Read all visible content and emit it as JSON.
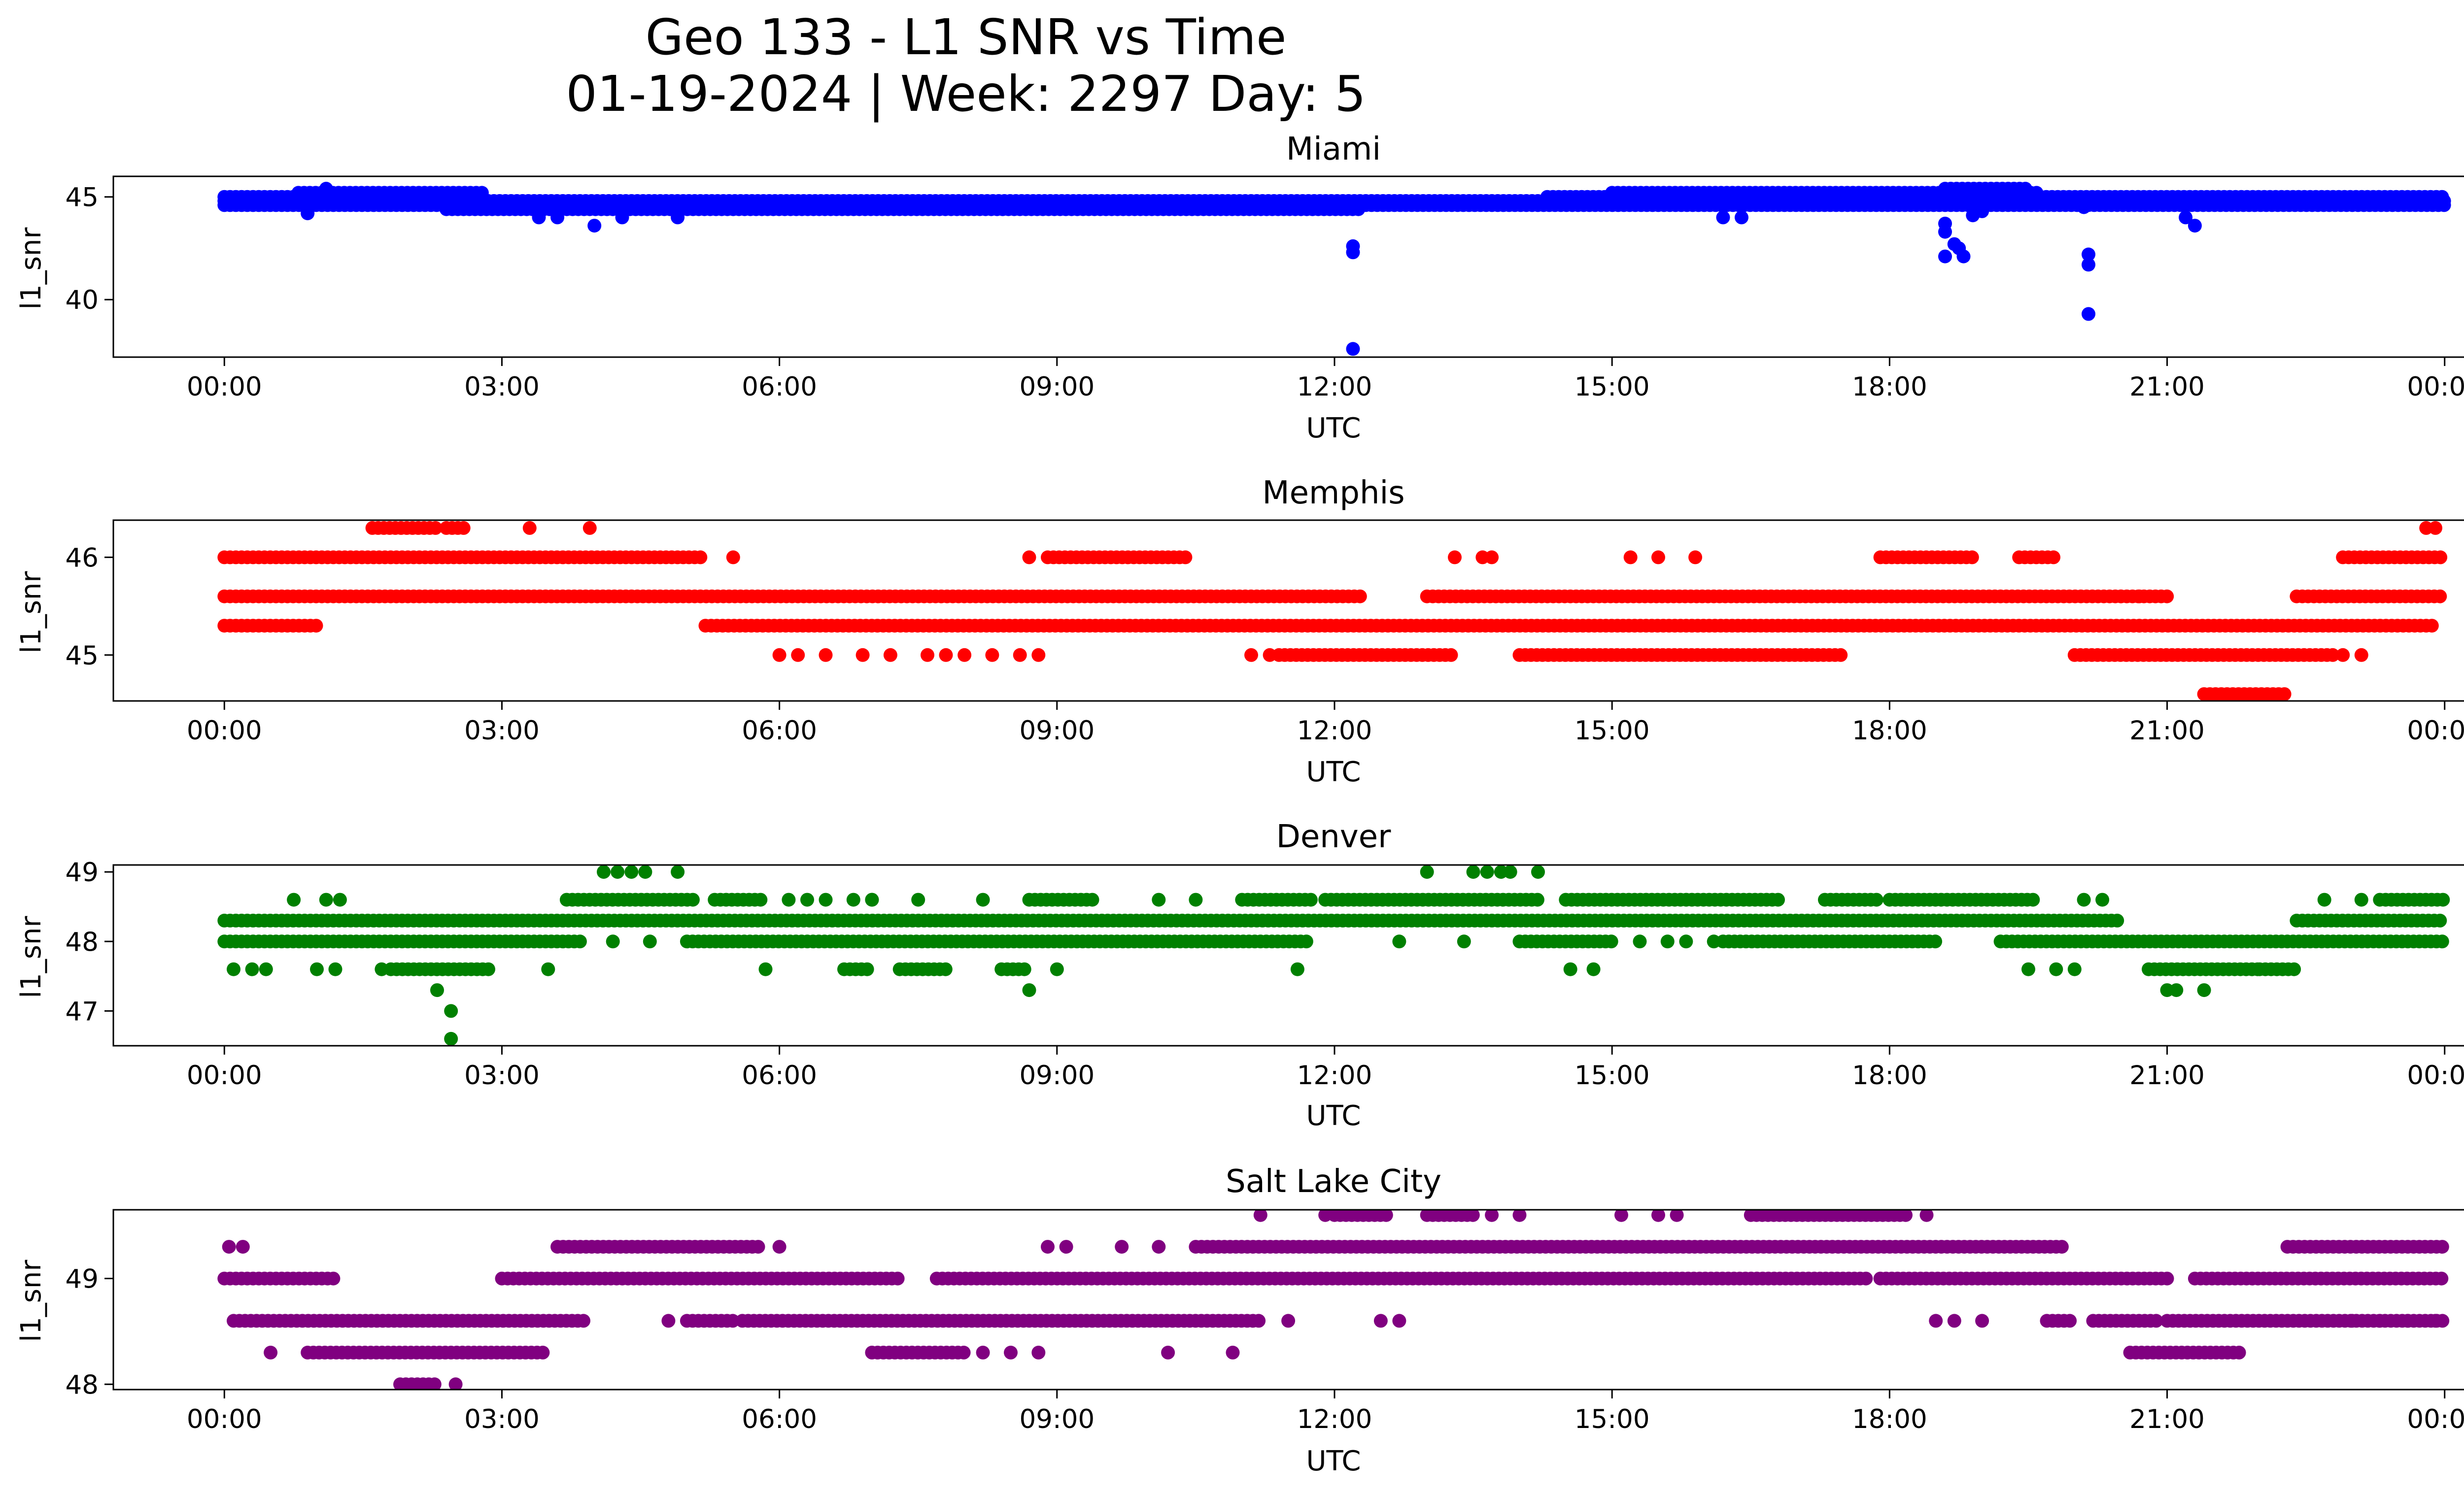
{
  "figure": {
    "title_line1": "Geo 133 - L1 SNR vs Time",
    "title_line2": "01-19-2024 | Week: 2297 Day: 5"
  },
  "chart_data": [
    {
      "type": "scatter",
      "title": "Miami",
      "xlabel": "UTC",
      "ylabel": "l1_snr",
      "color": "#0000ff",
      "x_ticks": [
        "00:00",
        "03:00",
        "06:00",
        "09:00",
        "12:00",
        "15:00",
        "18:00",
        "21:00",
        "00:00"
      ],
      "xlim_hours": [
        -1.2,
        25.2
      ],
      "y_ticks": [
        40,
        45
      ],
      "ylim": [
        37.2,
        46.0
      ],
      "bands": [
        {
          "y": 44.6,
          "start": 0.0,
          "end": 24.0
        },
        {
          "y": 44.8,
          "start": 0.0,
          "end": 24.0
        },
        {
          "y": 45.0,
          "start": 0.0,
          "end": 2.7
        },
        {
          "y": 45.2,
          "start": 0.8,
          "end": 2.8
        },
        {
          "y": 44.4,
          "start": 2.4,
          "end": 12.3
        },
        {
          "y": 45.0,
          "start": 14.3,
          "end": 24.0
        },
        {
          "y": 45.2,
          "start": 15.0,
          "end": 19.6
        },
        {
          "y": 45.4,
          "start": 18.6,
          "end": 19.5
        }
      ],
      "points": [
        {
          "x": 0.9,
          "y": 44.2
        },
        {
          "x": 1.1,
          "y": 45.4
        },
        {
          "x": 3.4,
          "y": 44.0
        },
        {
          "x": 3.6,
          "y": 44.0
        },
        {
          "x": 4.0,
          "y": 43.6
        },
        {
          "x": 4.3,
          "y": 44.0
        },
        {
          "x": 4.9,
          "y": 44.0
        },
        {
          "x": 12.2,
          "y": 42.6
        },
        {
          "x": 12.2,
          "y": 42.3
        },
        {
          "x": 12.2,
          "y": 37.6
        },
        {
          "x": 16.2,
          "y": 44.0
        },
        {
          "x": 16.4,
          "y": 44.0
        },
        {
          "x": 18.6,
          "y": 43.7
        },
        {
          "x": 18.6,
          "y": 43.3
        },
        {
          "x": 18.7,
          "y": 42.7
        },
        {
          "x": 18.6,
          "y": 42.1
        },
        {
          "x": 18.8,
          "y": 42.1
        },
        {
          "x": 18.75,
          "y": 42.5
        },
        {
          "x": 18.9,
          "y": 44.1
        },
        {
          "x": 19.0,
          "y": 44.3
        },
        {
          "x": 20.1,
          "y": 44.5
        },
        {
          "x": 20.15,
          "y": 42.2
        },
        {
          "x": 20.15,
          "y": 41.7
        },
        {
          "x": 20.15,
          "y": 39.3
        },
        {
          "x": 21.2,
          "y": 44.0
        },
        {
          "x": 21.3,
          "y": 43.6
        }
      ]
    },
    {
      "type": "scatter",
      "title": "Memphis",
      "xlabel": "UTC",
      "ylabel": "l1_snr",
      "color": "#ff0000",
      "x_ticks": [
        "00:00",
        "03:00",
        "06:00",
        "09:00",
        "12:00",
        "15:00",
        "18:00",
        "21:00",
        "00:00"
      ],
      "xlim_hours": [
        -1.2,
        25.2
      ],
      "y_ticks": [
        45,
        46
      ],
      "ylim": [
        44.53,
        46.38
      ],
      "bands": [
        {
          "y": 45.6,
          "start": 0.0,
          "end": 12.3
        },
        {
          "y": 45.6,
          "start": 13.0,
          "end": 21.0
        },
        {
          "y": 45.6,
          "start": 22.4,
          "end": 24.0
        },
        {
          "y": 45.3,
          "start": 0.0,
          "end": 1.0
        },
        {
          "y": 45.3,
          "start": 5.2,
          "end": 23.9
        },
        {
          "y": 46.0,
          "start": 0.0,
          "end": 5.2
        },
        {
          "y": 46.0,
          "start": 8.9,
          "end": 10.4
        },
        {
          "y": 46.0,
          "start": 17.9,
          "end": 18.9
        },
        {
          "y": 46.0,
          "start": 19.4,
          "end": 19.8
        },
        {
          "y": 46.0,
          "start": 22.9,
          "end": 24.0
        },
        {
          "y": 45.0,
          "start": 11.4,
          "end": 13.3
        },
        {
          "y": 45.0,
          "start": 14.0,
          "end": 17.5
        },
        {
          "y": 45.0,
          "start": 20.0,
          "end": 22.8
        },
        {
          "y": 44.6,
          "start": 21.4,
          "end": 22.3
        },
        {
          "y": 46.3,
          "start": 1.6,
          "end": 2.3
        },
        {
          "y": 46.3,
          "start": 2.4,
          "end": 2.6
        }
      ],
      "points": [
        {
          "x": 5.5,
          "y": 46.0
        },
        {
          "x": 3.3,
          "y": 46.3
        },
        {
          "x": 3.95,
          "y": 46.3
        },
        {
          "x": 8.7,
          "y": 46.0
        },
        {
          "x": 13.3,
          "y": 46.0
        },
        {
          "x": 13.6,
          "y": 46.0
        },
        {
          "x": 13.7,
          "y": 46.0
        },
        {
          "x": 15.2,
          "y": 46.0
        },
        {
          "x": 15.5,
          "y": 46.0
        },
        {
          "x": 15.9,
          "y": 46.0
        },
        {
          "x": 23.8,
          "y": 46.3
        },
        {
          "x": 23.9,
          "y": 46.3
        },
        {
          "x": 6.0,
          "y": 45.0
        },
        {
          "x": 6.2,
          "y": 45.0
        },
        {
          "x": 6.5,
          "y": 45.0
        },
        {
          "x": 6.9,
          "y": 45.0
        },
        {
          "x": 7.2,
          "y": 45.0
        },
        {
          "x": 7.6,
          "y": 45.0
        },
        {
          "x": 7.8,
          "y": 45.0
        },
        {
          "x": 8.0,
          "y": 45.0
        },
        {
          "x": 8.3,
          "y": 45.0
        },
        {
          "x": 8.6,
          "y": 45.0
        },
        {
          "x": 8.8,
          "y": 45.0
        },
        {
          "x": 11.1,
          "y": 45.0
        },
        {
          "x": 11.3,
          "y": 45.0
        },
        {
          "x": 20.5,
          "y": 45.6
        },
        {
          "x": 20.7,
          "y": 45.6
        },
        {
          "x": 20.7,
          "y": 45.3
        },
        {
          "x": 22.9,
          "y": 45.0
        },
        {
          "x": 23.1,
          "y": 45.0
        }
      ]
    },
    {
      "type": "scatter",
      "title": "Denver",
      "xlabel": "UTC",
      "ylabel": "l1_snr",
      "color": "#008000",
      "x_ticks": [
        "00:00",
        "03:00",
        "06:00",
        "09:00",
        "12:00",
        "15:00",
        "18:00",
        "21:00",
        "00:00"
      ],
      "xlim_hours": [
        -1.2,
        25.2
      ],
      "y_ticks": [
        47,
        48,
        49
      ],
      "ylim": [
        46.5,
        49.1
      ],
      "bands": [
        {
          "y": 48.0,
          "start": 0.0,
          "end": 3.9
        },
        {
          "y": 48.0,
          "start": 5.0,
          "end": 11.7
        },
        {
          "y": 48.0,
          "start": 14.0,
          "end": 15.0
        },
        {
          "y": 48.0,
          "start": 16.2,
          "end": 18.5
        },
        {
          "y": 48.0,
          "start": 19.2,
          "end": 24.0
        },
        {
          "y": 48.3,
          "start": 0.0,
          "end": 20.5
        },
        {
          "y": 48.3,
          "start": 22.4,
          "end": 24.0
        },
        {
          "y": 48.6,
          "start": 3.7,
          "end": 5.1
        },
        {
          "y": 48.6,
          "start": 5.3,
          "end": 5.8
        },
        {
          "y": 48.6,
          "start": 8.7,
          "end": 9.4
        },
        {
          "y": 48.6,
          "start": 11.0,
          "end": 11.8
        },
        {
          "y": 48.6,
          "start": 11.9,
          "end": 14.2
        },
        {
          "y": 48.6,
          "start": 14.5,
          "end": 16.8
        },
        {
          "y": 48.6,
          "start": 17.3,
          "end": 17.9
        },
        {
          "y": 48.6,
          "start": 18.0,
          "end": 19.6
        },
        {
          "y": 48.6,
          "start": 23.3,
          "end": 24.0
        },
        {
          "y": 47.6,
          "start": 1.8,
          "end": 2.9
        },
        {
          "y": 47.6,
          "start": 20.8,
          "end": 22.0
        },
        {
          "y": 47.6,
          "start": 22.0,
          "end": 22.4
        },
        {
          "y": 47.6,
          "start": 8.4,
          "end": 8.7
        },
        {
          "y": 47.6,
          "start": 7.3,
          "end": 7.8
        },
        {
          "y": 47.6,
          "start": 6.7,
          "end": 7.0
        }
      ],
      "points": [
        {
          "x": 0.1,
          "y": 47.6
        },
        {
          "x": 0.3,
          "y": 47.6
        },
        {
          "x": 0.45,
          "y": 47.6
        },
        {
          "x": 0.75,
          "y": 48.6
        },
        {
          "x": 1.1,
          "y": 48.6
        },
        {
          "x": 1.25,
          "y": 48.6
        },
        {
          "x": 1.0,
          "y": 47.6
        },
        {
          "x": 1.2,
          "y": 47.6
        },
        {
          "x": 1.7,
          "y": 47.6
        },
        {
          "x": 2.3,
          "y": 47.3
        },
        {
          "x": 2.45,
          "y": 47.0
        },
        {
          "x": 2.45,
          "y": 46.6
        },
        {
          "x": 3.5,
          "y": 47.6
        },
        {
          "x": 4.2,
          "y": 48.0
        },
        {
          "x": 4.6,
          "y": 48.0
        },
        {
          "x": 4.1,
          "y": 49.0
        },
        {
          "x": 4.25,
          "y": 49.0
        },
        {
          "x": 4.4,
          "y": 49.0
        },
        {
          "x": 4.55,
          "y": 49.0
        },
        {
          "x": 4.9,
          "y": 49.0
        },
        {
          "x": 5.85,
          "y": 47.6
        },
        {
          "x": 6.1,
          "y": 48.6
        },
        {
          "x": 6.3,
          "y": 48.6
        },
        {
          "x": 6.5,
          "y": 48.6
        },
        {
          "x": 6.8,
          "y": 48.6
        },
        {
          "x": 7.0,
          "y": 48.6
        },
        {
          "x": 7.0,
          "y": 48.6
        },
        {
          "x": 7.5,
          "y": 48.6
        },
        {
          "x": 8.2,
          "y": 48.6
        },
        {
          "x": 8.7,
          "y": 47.3
        },
        {
          "x": 9.0,
          "y": 47.6
        },
        {
          "x": 10.1,
          "y": 48.6
        },
        {
          "x": 10.5,
          "y": 48.6
        },
        {
          "x": 11.6,
          "y": 47.6
        },
        {
          "x": 12.7,
          "y": 48.0
        },
        {
          "x": 13.0,
          "y": 49.0
        },
        {
          "x": 13.4,
          "y": 48.0
        },
        {
          "x": 13.5,
          "y": 49.0
        },
        {
          "x": 13.65,
          "y": 49.0
        },
        {
          "x": 13.8,
          "y": 49.0
        },
        {
          "x": 13.9,
          "y": 49.0
        },
        {
          "x": 14.2,
          "y": 49.0
        },
        {
          "x": 14.55,
          "y": 47.6
        },
        {
          "x": 14.8,
          "y": 47.6
        },
        {
          "x": 15.3,
          "y": 48.0
        },
        {
          "x": 15.6,
          "y": 48.0
        },
        {
          "x": 15.8,
          "y": 48.0
        },
        {
          "x": 16.1,
          "y": 48.0
        },
        {
          "x": 19.5,
          "y": 47.6
        },
        {
          "x": 19.8,
          "y": 47.6
        },
        {
          "x": 20.0,
          "y": 47.6
        },
        {
          "x": 20.1,
          "y": 48.6
        },
        {
          "x": 20.3,
          "y": 48.6
        },
        {
          "x": 21.0,
          "y": 47.3
        },
        {
          "x": 21.1,
          "y": 47.3
        },
        {
          "x": 21.4,
          "y": 47.3
        },
        {
          "x": 22.7,
          "y": 48.6
        },
        {
          "x": 23.1,
          "y": 48.6
        }
      ]
    },
    {
      "type": "scatter",
      "title": "Salt Lake City",
      "xlabel": "UTC",
      "ylabel": "l1_snr",
      "color": "#800080",
      "x_ticks": [
        "00:00",
        "03:00",
        "06:00",
        "09:00",
        "12:00",
        "15:00",
        "18:00",
        "21:00",
        "00:00"
      ],
      "xlim_hours": [
        -1.2,
        25.2
      ],
      "y_ticks": [
        48,
        49
      ],
      "ylim": [
        47.95,
        49.65
      ],
      "bands": [
        {
          "y": 49.0,
          "start": 0.0,
          "end": 1.2
        },
        {
          "y": 49.0,
          "start": 3.0,
          "end": 7.3
        },
        {
          "y": 49.0,
          "start": 7.7,
          "end": 17.8
        },
        {
          "y": 49.0,
          "start": 17.9,
          "end": 21.0
        },
        {
          "y": 49.0,
          "start": 21.3,
          "end": 24.0
        },
        {
          "y": 48.6,
          "start": 0.1,
          "end": 3.9
        },
        {
          "y": 48.6,
          "start": 5.0,
          "end": 5.5
        },
        {
          "y": 48.6,
          "start": 5.6,
          "end": 11.2
        },
        {
          "y": 48.6,
          "start": 21.0,
          "end": 24.0
        },
        {
          "y": 48.6,
          "start": 19.7,
          "end": 20.0
        },
        {
          "y": 48.6,
          "start": 20.2,
          "end": 20.9
        },
        {
          "y": 48.3,
          "start": 0.9,
          "end": 3.5
        },
        {
          "y": 48.3,
          "start": 7.0,
          "end": 8.0
        },
        {
          "y": 48.3,
          "start": 20.6,
          "end": 21.8
        },
        {
          "y": 49.3,
          "start": 3.6,
          "end": 5.8
        },
        {
          "y": 49.3,
          "start": 10.5,
          "end": 19.9
        },
        {
          "y": 49.3,
          "start": 22.3,
          "end": 24.0
        },
        {
          "y": 49.6,
          "start": 16.5,
          "end": 18.2
        },
        {
          "y": 49.6,
          "start": 12.0,
          "end": 12.6
        },
        {
          "y": 49.6,
          "start": 13.0,
          "end": 13.5
        },
        {
          "y": 48.0,
          "start": 1.9,
          "end": 2.3
        }
      ],
      "points": [
        {
          "x": 0.05,
          "y": 49.3
        },
        {
          "x": 0.2,
          "y": 49.3
        },
        {
          "x": 0.5,
          "y": 48.3
        },
        {
          "x": 2.5,
          "y": 48.0
        },
        {
          "x": 4.8,
          "y": 48.6
        },
        {
          "x": 6.0,
          "y": 49.3
        },
        {
          "x": 8.2,
          "y": 48.3
        },
        {
          "x": 8.5,
          "y": 48.3
        },
        {
          "x": 8.8,
          "y": 48.3
        },
        {
          "x": 8.9,
          "y": 49.3
        },
        {
          "x": 9.1,
          "y": 49.3
        },
        {
          "x": 9.7,
          "y": 49.3
        },
        {
          "x": 10.1,
          "y": 49.3
        },
        {
          "x": 10.2,
          "y": 48.3
        },
        {
          "x": 10.9,
          "y": 48.3
        },
        {
          "x": 11.2,
          "y": 49.6
        },
        {
          "x": 11.5,
          "y": 48.6
        },
        {
          "x": 11.9,
          "y": 49.6
        },
        {
          "x": 12.5,
          "y": 48.6
        },
        {
          "x": 12.7,
          "y": 48.6
        },
        {
          "x": 13.7,
          "y": 49.6
        },
        {
          "x": 14.0,
          "y": 49.6
        },
        {
          "x": 15.1,
          "y": 49.6
        },
        {
          "x": 15.5,
          "y": 49.6
        },
        {
          "x": 15.7,
          "y": 49.6
        },
        {
          "x": 18.4,
          "y": 49.6
        },
        {
          "x": 18.5,
          "y": 48.6
        },
        {
          "x": 18.7,
          "y": 48.6
        },
        {
          "x": 19.0,
          "y": 48.6
        },
        {
          "x": 23.0,
          "y": 48.6
        },
        {
          "x": 23.3,
          "y": 48.6
        },
        {
          "x": 23.6,
          "y": 48.6
        },
        {
          "x": 23.9,
          "y": 48.6
        }
      ]
    }
  ]
}
